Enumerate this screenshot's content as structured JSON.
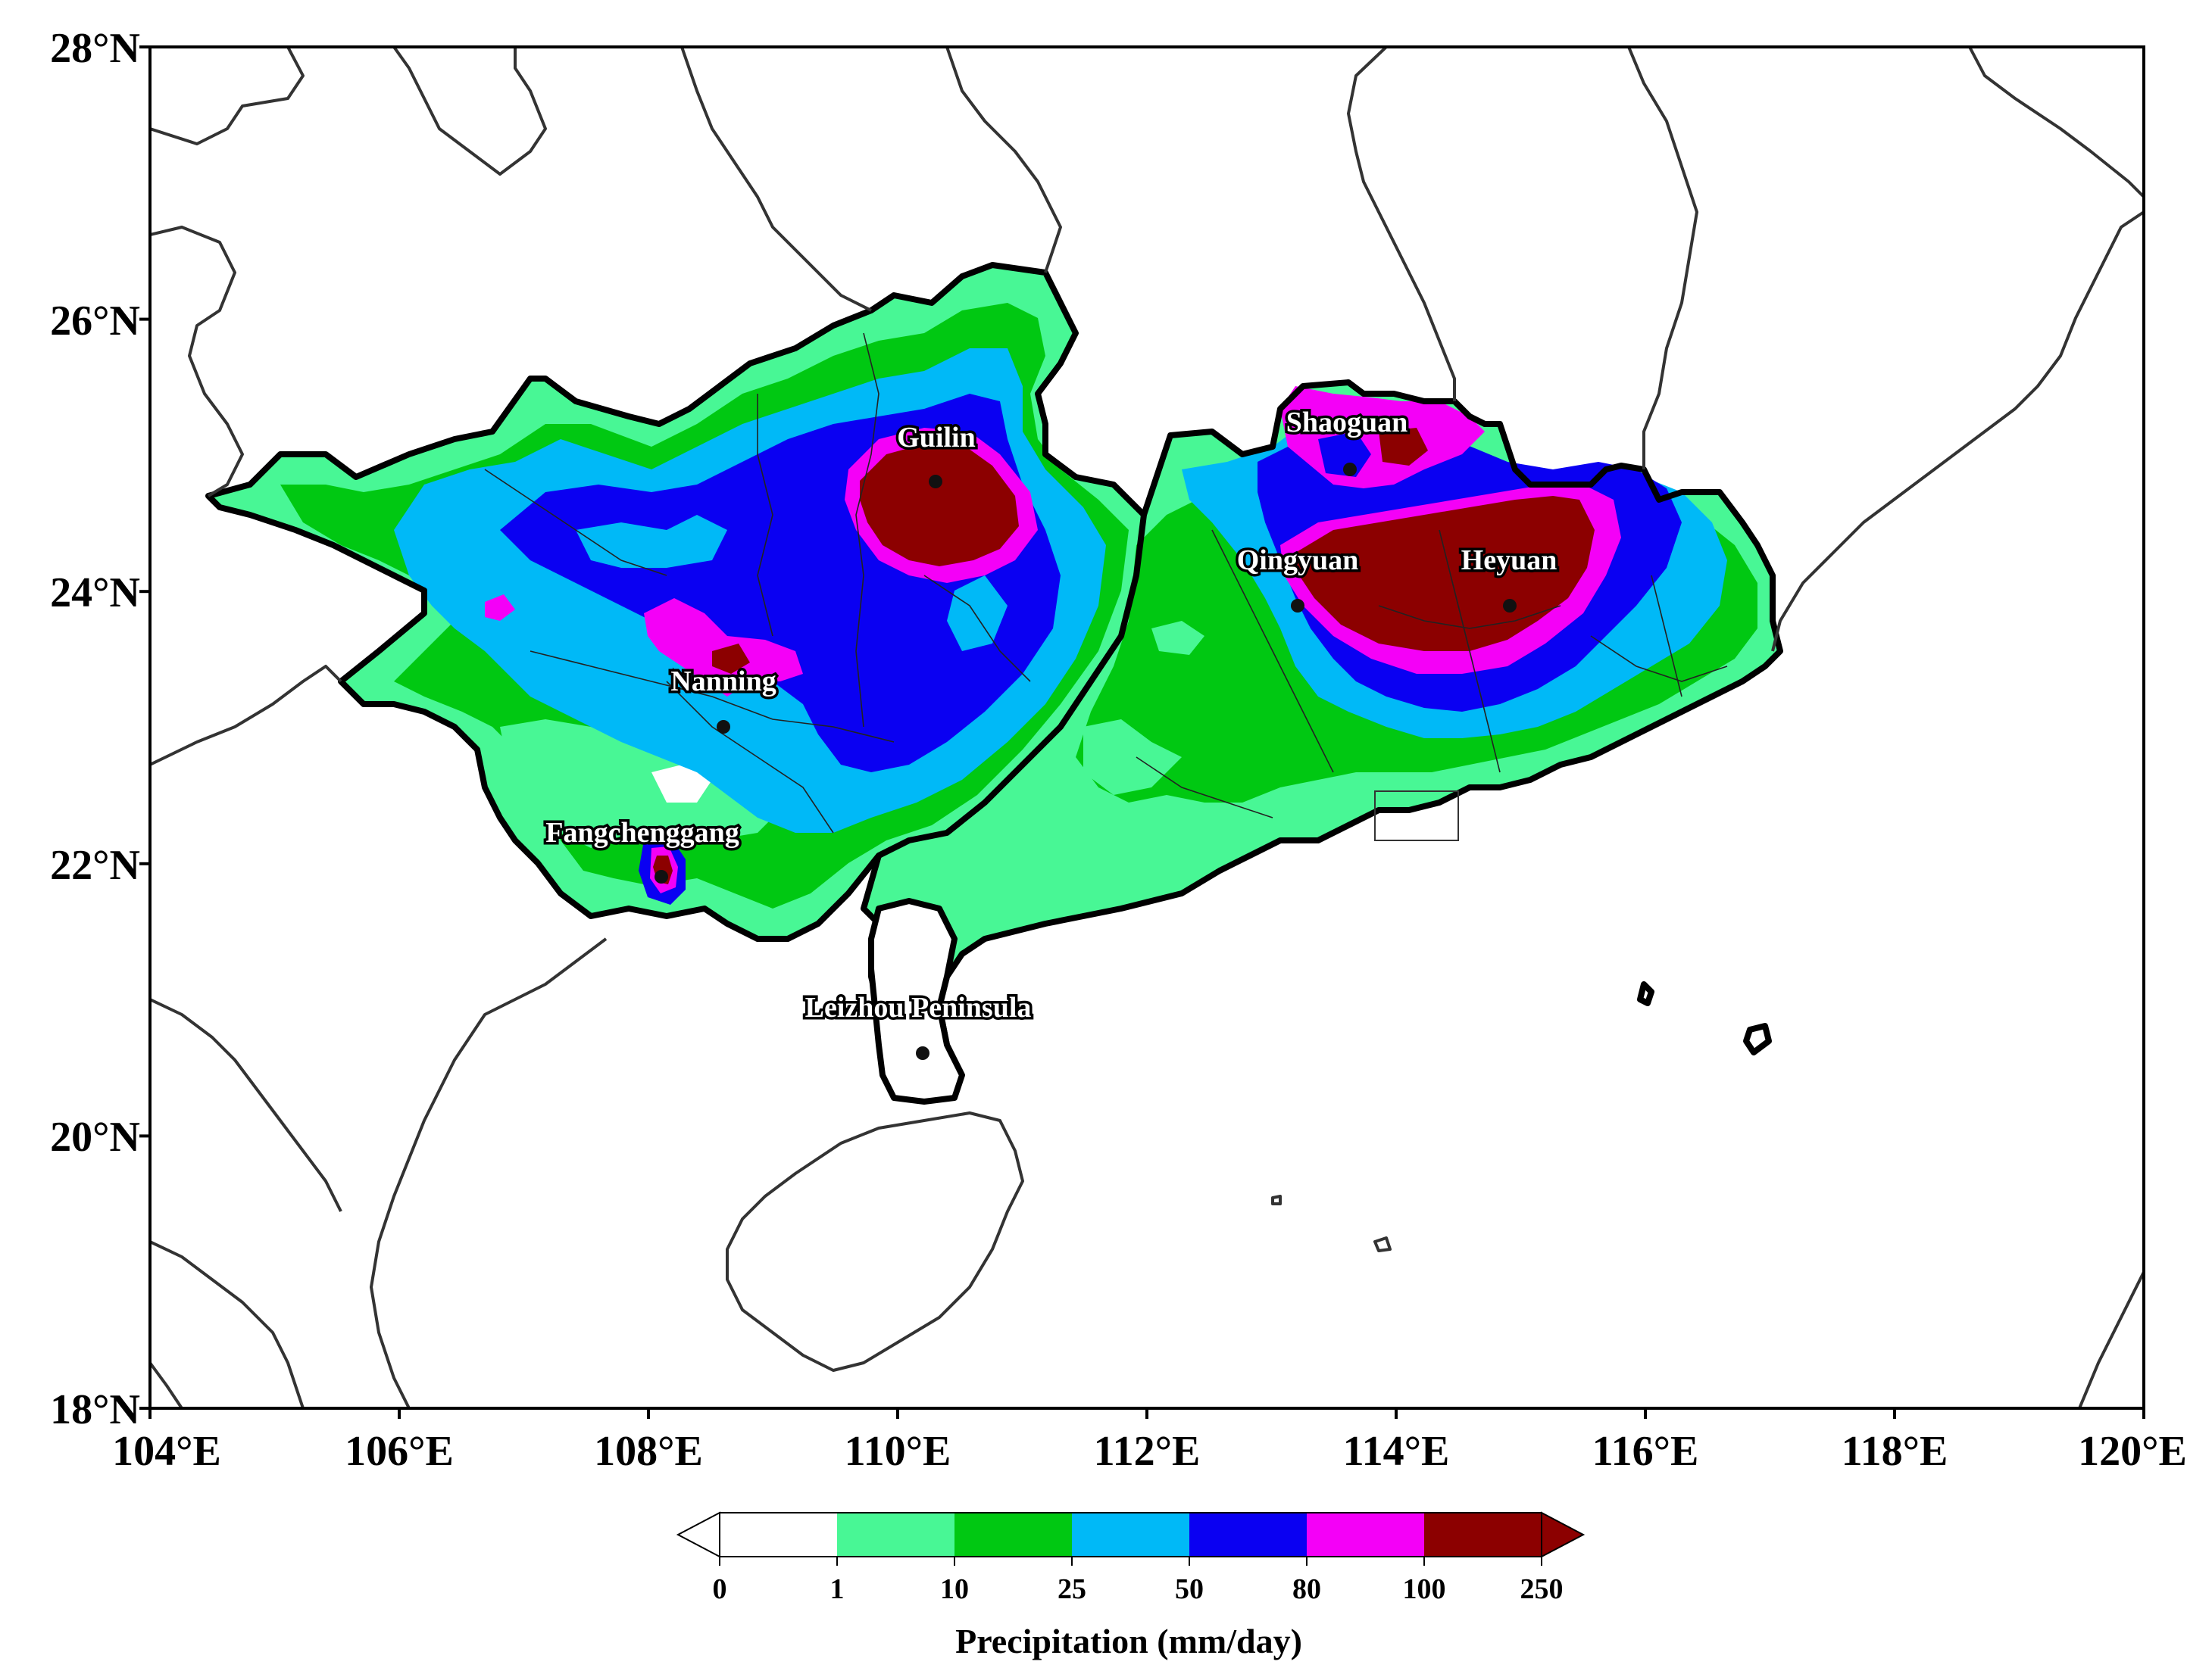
{
  "map": {
    "x_ticks": [
      "104°E",
      "106°E",
      "108°E",
      "110°E",
      "112°E",
      "114°E",
      "116°E",
      "118°E",
      "120°E"
    ],
    "y_ticks": [
      "28°N",
      "26°N",
      "24°N",
      "22°N",
      "20°N",
      "18°N"
    ],
    "lon_range": [
      104,
      120
    ],
    "lat_range": [
      18,
      28
    ]
  },
  "cities": [
    {
      "name": "Guilin",
      "lon": 110.3,
      "lat": 24.8
    },
    {
      "name": "Shaoguan",
      "lon": 113.6,
      "lat": 24.9
    },
    {
      "name": "Qingyuan",
      "lon": 113.2,
      "lat": 23.9
    },
    {
      "name": "Heyuan",
      "lon": 114.9,
      "lat": 23.9
    },
    {
      "name": "Nanning",
      "lon": 108.6,
      "lat": 23.0
    },
    {
      "name": "Fangchenggang",
      "lon": 108.1,
      "lat": 21.9
    },
    {
      "name": "Leizhou Peninsula",
      "lon": 110.2,
      "lat": 20.6
    }
  ],
  "colorbar": {
    "title": "Precipitation (mm/day)",
    "levels": [
      "0",
      "1",
      "10",
      "25",
      "50",
      "80",
      "100",
      "250"
    ],
    "colors": [
      "#ffffff",
      "#48f795",
      "#00c812",
      "#00b9f7",
      "#0a00f2",
      "#f400f7",
      "#8c0000"
    ]
  }
}
